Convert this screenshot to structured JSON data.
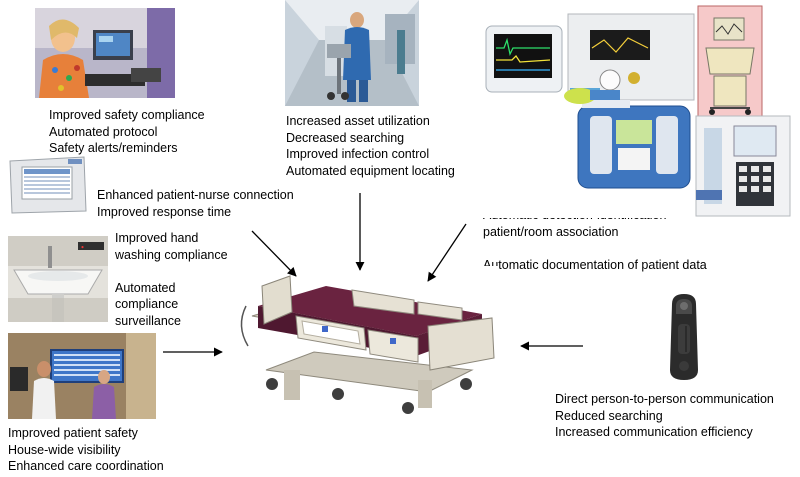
{
  "nurse_station": {
    "lines": [
      "Improved safety compliance",
      "Automated protocol",
      "Safety alerts/reminders"
    ],
    "icon": "nurse-at-workstation-photo"
  },
  "asset_tracking": {
    "lines": [
      "Increased asset utilization",
      "Decreased searching",
      "Improved infection control",
      "Automated equipment locating"
    ],
    "icon": "worker-pushing-equipment-photo"
  },
  "patient_nurse": {
    "lines": [
      "Enhanced patient-nurse connection",
      "Improved response time"
    ],
    "icon": "nurse-call-console-photo"
  },
  "hand_washing": {
    "lines": [
      "Improved hand",
      "washing compliance",
      "",
      "Automated",
      "compliance",
      "surveillance"
    ],
    "icon": "hand-washing-sink-photo"
  },
  "visibility": {
    "lines": [
      "Improved patient safety",
      "House-wide visibility",
      "Enhanced care coordination"
    ],
    "icon": "staff-at-display-board-photo"
  },
  "devices": {
    "lines": [
      "Automatic detection-identification",
      "patient/room association",
      "",
      "Automatic documentation of patient data"
    ],
    "icon": "medical-devices-photos"
  },
  "communication": {
    "lines": [
      "Direct person-to-person communication",
      "Reduced searching",
      "Increased communication efficiency"
    ],
    "icon": "wearable-communication-badge-photo"
  },
  "center": {
    "icon": "hospital-bed-photo"
  },
  "colors": {
    "mattress": "#6a2340",
    "frame": "#d9d4c6",
    "highlight_box": "#f6c9c9"
  }
}
